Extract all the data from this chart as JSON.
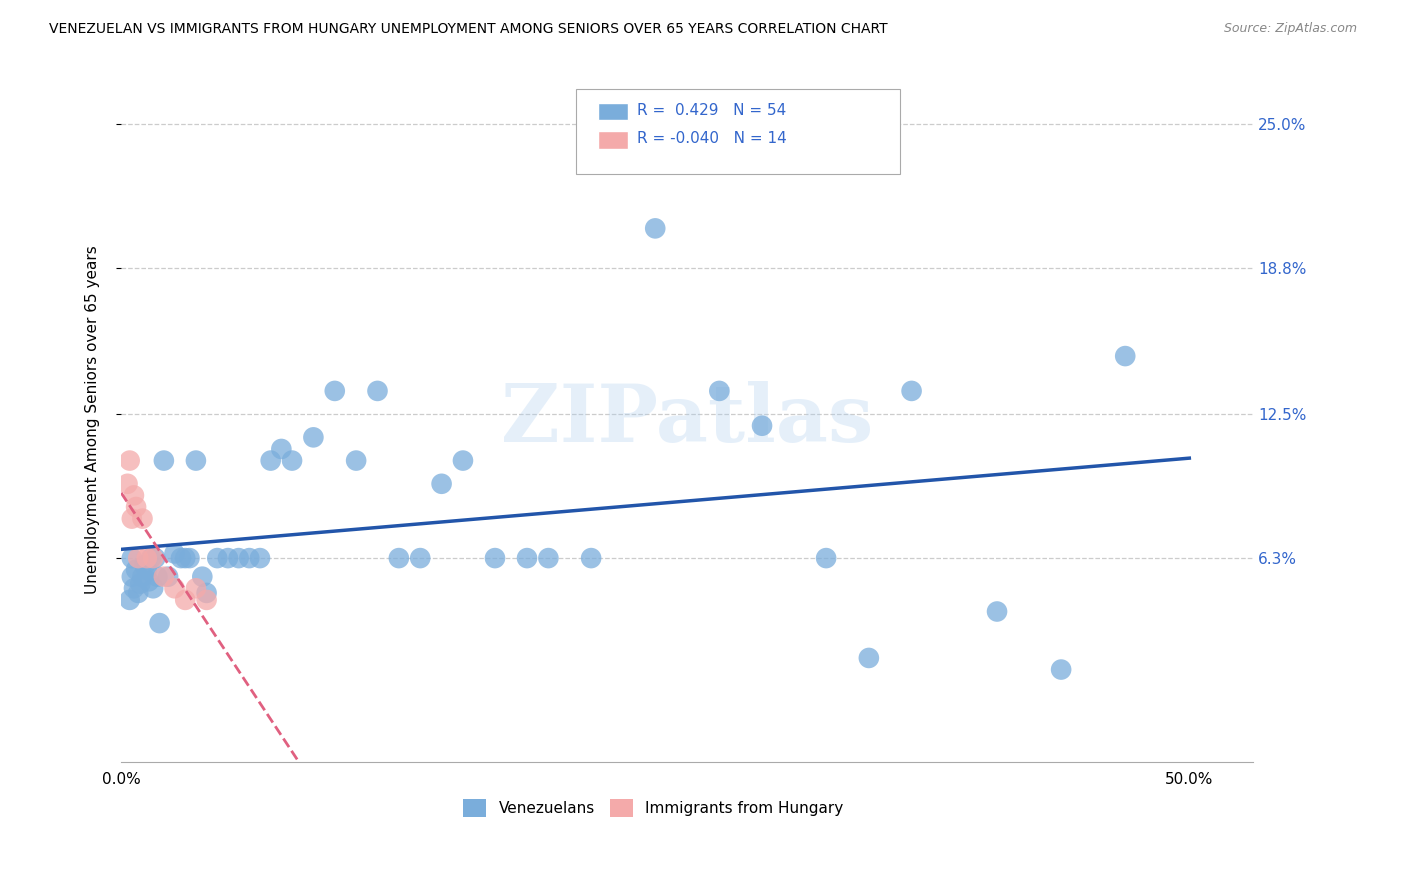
{
  "title": "VENEZUELAN VS IMMIGRANTS FROM HUNGARY UNEMPLOYMENT AMONG SENIORS OVER 65 YEARS CORRELATION CHART",
  "source": "Source: ZipAtlas.com",
  "ylabel": "Unemployment Among Seniors over 65 years",
  "ytick_values": [
    6.3,
    12.5,
    18.8,
    25.0
  ],
  "ytick_labels": [
    "6.3%",
    "12.5%",
    "18.8%",
    "25.0%"
  ],
  "xtick_values": [
    0,
    50
  ],
  "xtick_labels": [
    "0.0%",
    "50.0%"
  ],
  "xlim": [
    0.0,
    53.0
  ],
  "ylim": [
    -2.5,
    27.0
  ],
  "watermark_text": "ZIPatlas",
  "venezuelan_color": "#7AADDB",
  "hungary_color": "#F4AAAA",
  "venezuelan_line_color": "#2255AA",
  "hungary_line_color": "#E06080",
  "venezuelan_x": [
    0.4,
    0.5,
    0.5,
    0.6,
    0.7,
    0.8,
    0.9,
    1.0,
    1.1,
    1.2,
    1.3,
    1.4,
    1.5,
    1.6,
    1.7,
    1.8,
    2.0,
    2.2,
    2.5,
    2.8,
    3.0,
    3.2,
    3.5,
    3.8,
    4.0,
    4.5,
    5.0,
    5.5,
    6.0,
    6.5,
    7.0,
    7.5,
    8.0,
    9.0,
    10.0,
    11.0,
    12.0,
    13.0,
    14.0,
    15.0,
    16.0,
    17.5,
    19.0,
    20.0,
    22.0,
    25.0,
    28.0,
    30.0,
    33.0,
    35.0,
    37.0,
    41.0,
    44.0,
    47.0
  ],
  "venezuelan_y": [
    4.5,
    5.5,
    6.3,
    5.0,
    5.8,
    4.8,
    5.2,
    5.5,
    6.0,
    5.8,
    5.3,
    6.3,
    5.0,
    6.3,
    5.5,
    3.5,
    10.5,
    5.5,
    6.5,
    6.3,
    6.3,
    6.3,
    10.5,
    5.5,
    4.8,
    6.3,
    6.3,
    6.3,
    6.3,
    6.3,
    10.5,
    11.0,
    10.5,
    11.5,
    13.5,
    10.5,
    13.5,
    6.3,
    6.3,
    9.5,
    10.5,
    6.3,
    6.3,
    6.3,
    6.3,
    20.5,
    13.5,
    12.0,
    6.3,
    2.0,
    13.5,
    4.0,
    1.5,
    15.0
  ],
  "hungary_x": [
    0.3,
    0.4,
    0.5,
    0.6,
    0.7,
    0.8,
    1.0,
    1.2,
    1.5,
    2.0,
    2.5,
    3.0,
    3.5,
    4.0
  ],
  "hungary_y": [
    9.5,
    10.5,
    8.0,
    9.0,
    8.5,
    6.3,
    8.0,
    6.3,
    6.3,
    5.5,
    5.0,
    4.5,
    5.0,
    4.5
  ],
  "legend_text_r1": "R =  0.429   N = 54",
  "legend_text_r2": "R = -0.040   N = 14",
  "legend_label_ven": "Venezuelans",
  "legend_label_hun": "Immigrants from Hungary"
}
